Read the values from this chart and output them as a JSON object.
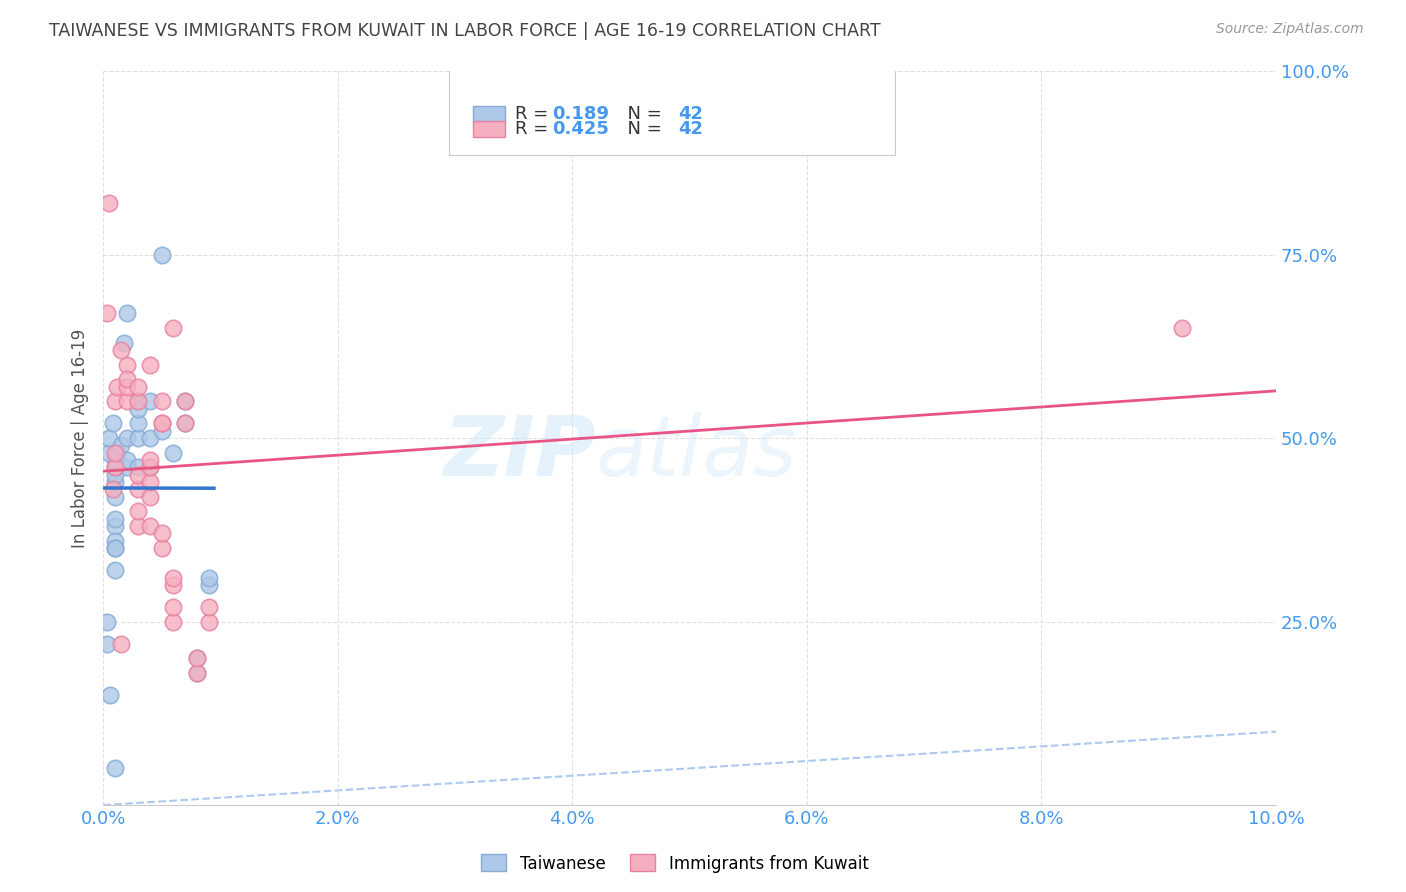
{
  "title": "TAIWANESE VS IMMIGRANTS FROM KUWAIT IN LABOR FORCE | AGE 16-19 CORRELATION CHART",
  "source": "Source: ZipAtlas.com",
  "ylabel": "In Labor Force | Age 16-19",
  "xlim": [
    0.0,
    0.1
  ],
  "ylim": [
    0.0,
    1.0
  ],
  "xticks": [
    0.0,
    0.02,
    0.04,
    0.06,
    0.08,
    0.1
  ],
  "xtick_labels": [
    "0.0%",
    "2.0%",
    "4.0%",
    "6.0%",
    "8.0%",
    "10.0%"
  ],
  "yticks": [
    0.0,
    0.25,
    0.5,
    0.75,
    1.0
  ],
  "ytick_labels": [
    "",
    "25.0%",
    "50.0%",
    "75.0%",
    "100.0%"
  ],
  "R_taiwanese": 0.189,
  "R_kuwait": 0.425,
  "N_taiwanese": 42,
  "N_kuwait": 42,
  "taiwanese_color": "#adc8e8",
  "kuwait_color": "#f5afc0",
  "taiwanese_edge": "#85aad4",
  "kuwait_edge": "#e880a0",
  "reg_taiwanese_color": "#3377cc",
  "reg_kuwait_color": "#e85585",
  "ref_line_color": "#99bbee",
  "background_color": "#ffffff",
  "grid_color": "#dddddd",
  "title_color": "#444444",
  "axis_label_color": "#555555",
  "tick_color": "#4499ee",
  "legend_R_color": "#333333",
  "legend_N_color": "#4499ee",
  "taiwanese_x": [
    0.001,
    0.001,
    0.001,
    0.001,
    0.001,
    0.001,
    0.001,
    0.001,
    0.001,
    0.0005,
    0.0005,
    0.0008,
    0.0012,
    0.0015,
    0.0018,
    0.002,
    0.002,
    0.002,
    0.002,
    0.003,
    0.003,
    0.003,
    0.003,
    0.003,
    0.004,
    0.004,
    0.004,
    0.005,
    0.005,
    0.006,
    0.007,
    0.007,
    0.008,
    0.008,
    0.009,
    0.009,
    0.0003,
    0.0003,
    0.0006,
    0.001,
    0.001,
    0.001
  ],
  "taiwanese_y": [
    0.42,
    0.44,
    0.45,
    0.46,
    0.47,
    0.38,
    0.39,
    0.36,
    0.35,
    0.48,
    0.5,
    0.52,
    0.48,
    0.49,
    0.63,
    0.67,
    0.46,
    0.47,
    0.5,
    0.46,
    0.5,
    0.55,
    0.52,
    0.54,
    0.46,
    0.5,
    0.55,
    0.51,
    0.75,
    0.48,
    0.52,
    0.55,
    0.2,
    0.18,
    0.3,
    0.31,
    0.25,
    0.22,
    0.15,
    0.32,
    0.35,
    0.05
  ],
  "kuwait_x": [
    0.0003,
    0.0005,
    0.0008,
    0.001,
    0.001,
    0.001,
    0.0012,
    0.0015,
    0.002,
    0.002,
    0.002,
    0.003,
    0.003,
    0.003,
    0.003,
    0.004,
    0.004,
    0.004,
    0.004,
    0.004,
    0.005,
    0.005,
    0.005,
    0.005,
    0.006,
    0.006,
    0.006,
    0.006,
    0.007,
    0.007,
    0.008,
    0.008,
    0.009,
    0.009,
    0.0015,
    0.002,
    0.003,
    0.003,
    0.004,
    0.005,
    0.006,
    0.092
  ],
  "kuwait_y": [
    0.67,
    0.82,
    0.43,
    0.46,
    0.48,
    0.55,
    0.57,
    0.22,
    0.55,
    0.57,
    0.6,
    0.38,
    0.4,
    0.43,
    0.45,
    0.38,
    0.42,
    0.44,
    0.46,
    0.47,
    0.52,
    0.55,
    0.35,
    0.37,
    0.25,
    0.27,
    0.3,
    0.31,
    0.52,
    0.55,
    0.18,
    0.2,
    0.25,
    0.27,
    0.62,
    0.58,
    0.55,
    0.57,
    0.6,
    0.52,
    0.65,
    0.65
  ]
}
